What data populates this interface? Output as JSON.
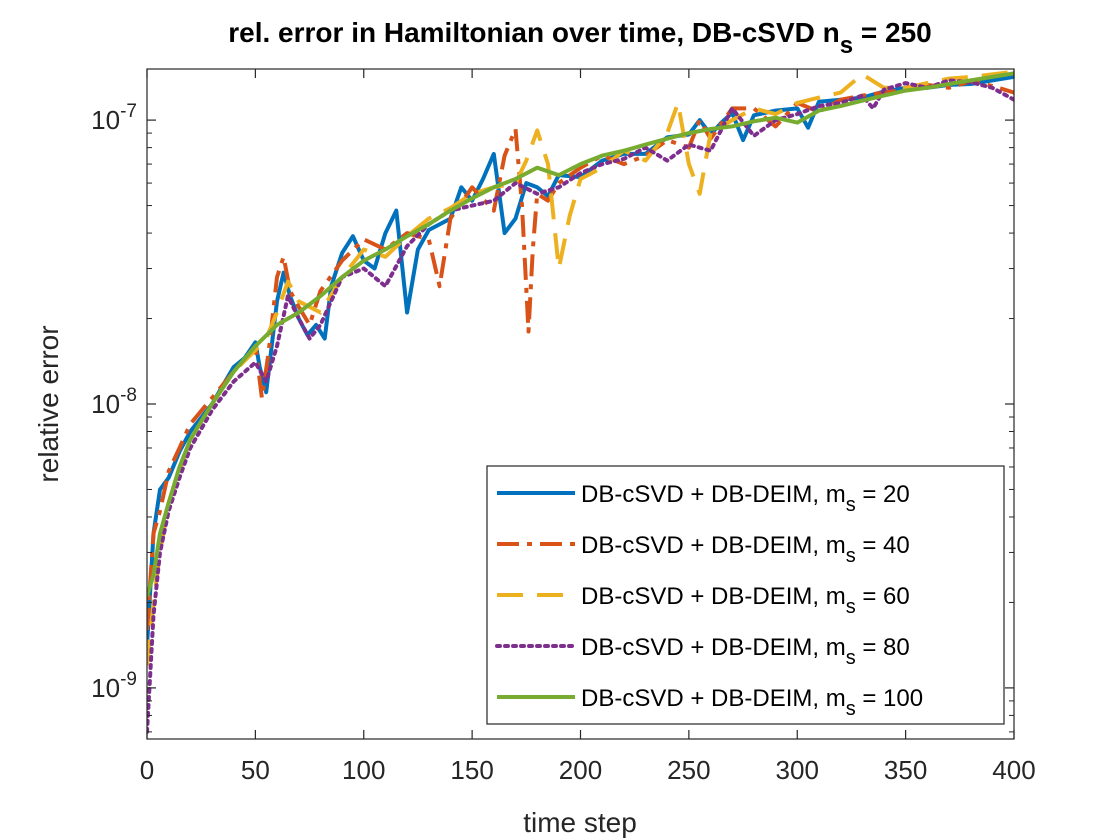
{
  "chart_data": {
    "type": "line",
    "title": "rel. error in Hamiltonian over time, DB-cSVD n",
    "title_subscript": "s",
    "title_suffix": " = 250",
    "xlabel": "time step",
    "ylabel": "relative error",
    "xlim": [
      0,
      400
    ],
    "ylim_log10": [
      -9.18,
      -6.82
    ],
    "yscale": "log",
    "x_ticks": [
      0,
      50,
      100,
      150,
      200,
      250,
      300,
      350,
      400
    ],
    "x_tick_labels": [
      "0",
      "50",
      "100",
      "150",
      "200",
      "250",
      "300",
      "350",
      "400"
    ],
    "y_ticks": [
      1e-09,
      1e-08,
      1e-07
    ],
    "y_tick_labels": [
      {
        "base": "10",
        "exp": "-9"
      },
      {
        "base": "10",
        "exp": "-8"
      },
      {
        "base": "10",
        "exp": "-7"
      }
    ],
    "grid": false,
    "legend_position": "bottom-right",
    "series": [
      {
        "name": "DB-cSVD + DB-DEIM, m",
        "name_sub": "s",
        "name_suffix": " = 20",
        "color": "#0072BD",
        "dash": "solid",
        "x": [
          0,
          3,
          6,
          10,
          15,
          20,
          30,
          40,
          45,
          50,
          52,
          55,
          60,
          63,
          66,
          70,
          74,
          78,
          82,
          85,
          90,
          95,
          100,
          105,
          110,
          115,
          120,
          125,
          130,
          140,
          145,
          150,
          155,
          160,
          165,
          170,
          175,
          180,
          185,
          190,
          200,
          210,
          220,
          230,
          240,
          250,
          255,
          260,
          265,
          270,
          275,
          280,
          290,
          300,
          305,
          310,
          320,
          330,
          340,
          350,
          360,
          370,
          380,
          390,
          400
        ],
        "y": [
          1.4e-09,
          3.5e-09,
          5e-09,
          5.5e-09,
          6.8e-09,
          8e-09,
          1e-08,
          1.35e-08,
          1.45e-08,
          1.65e-08,
          1.35e-08,
          1.1e-08,
          2.3e-08,
          2.9e-08,
          2.4e-08,
          2e-08,
          1.75e-08,
          1.9e-08,
          1.7e-08,
          2.6e-08,
          3.4e-08,
          3.9e-08,
          3.2e-08,
          3e-08,
          4e-08,
          4.8e-08,
          2.1e-08,
          3.5e-08,
          4.1e-08,
          4.5e-08,
          5.8e-08,
          5.2e-08,
          6.2e-08,
          7.6e-08,
          4e-08,
          4.5e-08,
          6e-08,
          5.8e-08,
          5.4e-08,
          6.4e-08,
          6.3e-08,
          7.2e-08,
          7.6e-08,
          7.6e-08,
          8.7e-08,
          8.9e-08,
          1e-07,
          8.9e-08,
          9.8e-08,
          1.06e-07,
          8.5e-08,
          1.04e-07,
          1.08e-07,
          1.1e-07,
          9.4e-08,
          1.16e-07,
          1.18e-07,
          1.2e-07,
          1.26e-07,
          1.3e-07,
          1.3e-07,
          1.33e-07,
          1.34e-07,
          1.38e-07,
          1.42e-07
        ]
      },
      {
        "name": "DB-cSVD + DB-DEIM, m",
        "name_sub": "s",
        "name_suffix": " = 40",
        "color": "#D95319",
        "dash": "dashdot",
        "x": [
          0,
          3,
          6,
          10,
          15,
          20,
          30,
          40,
          50,
          53,
          56,
          60,
          63,
          66,
          70,
          75,
          80,
          90,
          100,
          110,
          120,
          130,
          135,
          140,
          150,
          160,
          165,
          170,
          173,
          176,
          178,
          180,
          185,
          190,
          200,
          210,
          220,
          230,
          240,
          250,
          255,
          260,
          270,
          280,
          290,
          300,
          310,
          320,
          330,
          340,
          350,
          360,
          370,
          380,
          390,
          400
        ],
        "y": [
          1.6e-09,
          3.5e-09,
          4.2e-09,
          5.8e-09,
          7e-09,
          8.5e-09,
          1.05e-08,
          1.3e-08,
          1.6e-08,
          1.05e-08,
          1.5e-08,
          2.8e-08,
          3.3e-08,
          2.5e-08,
          2.2e-08,
          1.9e-08,
          2.5e-08,
          3.2e-08,
          3.8e-08,
          3.5e-08,
          4e-08,
          3.8e-08,
          2.6e-08,
          4.5e-08,
          5.8e-08,
          4.8e-08,
          7.5e-08,
          9.3e-08,
          5e-08,
          1.8e-08,
          3.5e-08,
          5.5e-08,
          5.2e-08,
          6e-08,
          6.8e-08,
          7.5e-08,
          7e-08,
          7.5e-08,
          8.5e-08,
          8e-08,
          1e-07,
          8.6e-08,
          1.1e-07,
          1.1e-07,
          9.5e-08,
          1.15e-07,
          1.07e-07,
          1.18e-07,
          1.22e-07,
          1.25e-07,
          1.28e-07,
          1.33e-07,
          1.3e-07,
          1.37e-07,
          1.32e-07,
          1.25e-07
        ]
      },
      {
        "name": "DB-cSVD + DB-DEIM, m",
        "name_sub": "s",
        "name_suffix": " = 60",
        "color": "#EDB120",
        "dash": "dashed",
        "x": [
          0,
          3,
          6,
          10,
          15,
          20,
          30,
          40,
          50,
          55,
          60,
          65,
          70,
          80,
          90,
          100,
          110,
          120,
          130,
          140,
          150,
          160,
          170,
          175,
          180,
          185,
          190,
          195,
          200,
          210,
          220,
          230,
          240,
          245,
          250,
          255,
          260,
          270,
          280,
          290,
          300,
          310,
          320,
          330,
          340,
          350,
          360,
          370,
          380,
          390,
          400
        ],
        "y": [
          1.2e-09,
          2e-09,
          3e-09,
          4.5e-09,
          5.8e-09,
          7.5e-09,
          1e-08,
          1.3e-08,
          1.55e-08,
          1.7e-08,
          2.1e-08,
          2.7e-08,
          2.3e-08,
          2.1e-08,
          2.8e-08,
          3.5e-08,
          3.3e-08,
          3.9e-08,
          4.5e-08,
          4.9e-08,
          5.5e-08,
          5.8e-08,
          6e-08,
          7.2e-08,
          9.2e-08,
          7e-08,
          3e-08,
          4.6e-08,
          6.2e-08,
          6.8e-08,
          7.8e-08,
          7.2e-08,
          9e-08,
          1.15e-07,
          7e-08,
          5.5e-08,
          9e-08,
          1e-07,
          1.1e-07,
          1.05e-07,
          1.15e-07,
          1.2e-07,
          1.25e-07,
          1.45e-07,
          1.3e-07,
          1.3e-07,
          1.35e-07,
          1.4e-07,
          1.42e-07,
          1.45e-07,
          1.48e-07
        ]
      },
      {
        "name": "DB-cSVD + DB-DEIM, m",
        "name_sub": "s",
        "name_suffix": " = 80",
        "color": "#7E2F8E",
        "dash": "dotted",
        "x": [
          0,
          3,
          6,
          10,
          15,
          20,
          30,
          40,
          50,
          55,
          60,
          65,
          70,
          75,
          80,
          90,
          100,
          110,
          120,
          130,
          140,
          150,
          160,
          170,
          180,
          190,
          200,
          210,
          220,
          230,
          240,
          250,
          260,
          270,
          280,
          290,
          300,
          310,
          320,
          330,
          335,
          340,
          350,
          360,
          370,
          380,
          390,
          400
        ],
        "y": [
          7e-10,
          1.8e-09,
          3e-09,
          4.2e-09,
          5.5e-09,
          7e-09,
          9.5e-09,
          1.2e-08,
          1.4e-08,
          1.2e-08,
          1.6e-08,
          2.4e-08,
          2e-08,
          1.7e-08,
          1.9e-08,
          2.8e-08,
          3e-08,
          2.6e-08,
          3.6e-08,
          4.3e-08,
          4.8e-08,
          5e-08,
          5.2e-08,
          6e-08,
          5.5e-08,
          5.8e-08,
          6.5e-08,
          7e-08,
          7.3e-08,
          8e-08,
          7.2e-08,
          8.2e-08,
          7.8e-08,
          1.1e-07,
          8.8e-08,
          1e-07,
          1.05e-07,
          1.12e-07,
          1.15e-07,
          1.22e-07,
          1.1e-07,
          1.28e-07,
          1.35e-07,
          1.3e-07,
          1.38e-07,
          1.36e-07,
          1.3e-07,
          1.18e-07
        ]
      },
      {
        "name": "DB-cSVD + DB-DEIM, m",
        "name_sub": "s",
        "name_suffix": " = 100",
        "color": "#77AC30",
        "dash": "solid",
        "x": [
          0,
          3,
          6,
          10,
          15,
          20,
          30,
          40,
          50,
          60,
          70,
          80,
          90,
          100,
          110,
          120,
          130,
          140,
          150,
          160,
          170,
          180,
          190,
          200,
          210,
          220,
          230,
          240,
          250,
          260,
          270,
          280,
          290,
          300,
          310,
          320,
          330,
          340,
          350,
          360,
          370,
          380,
          390,
          400
        ],
        "y": [
          2.1e-09,
          2.5e-09,
          3.5e-09,
          4.5e-09,
          6e-09,
          7.5e-09,
          1e-08,
          1.3e-08,
          1.6e-08,
          1.9e-08,
          2.1e-08,
          2.4e-08,
          2.8e-08,
          3.2e-08,
          3.5e-08,
          3.9e-08,
          4.3e-08,
          4.8e-08,
          5.3e-08,
          5.8e-08,
          6.2e-08,
          6.8e-08,
          6.4e-08,
          7e-08,
          7.5e-08,
          7.8e-08,
          8.2e-08,
          8.6e-08,
          9e-08,
          9.3e-08,
          9.5e-08,
          9.9e-08,
          1.02e-07,
          9.8e-08,
          1.08e-07,
          1.12e-07,
          1.17e-07,
          1.22e-07,
          1.27e-07,
          1.3e-07,
          1.34e-07,
          1.38e-07,
          1.42e-07,
          1.46e-07
        ]
      }
    ]
  }
}
